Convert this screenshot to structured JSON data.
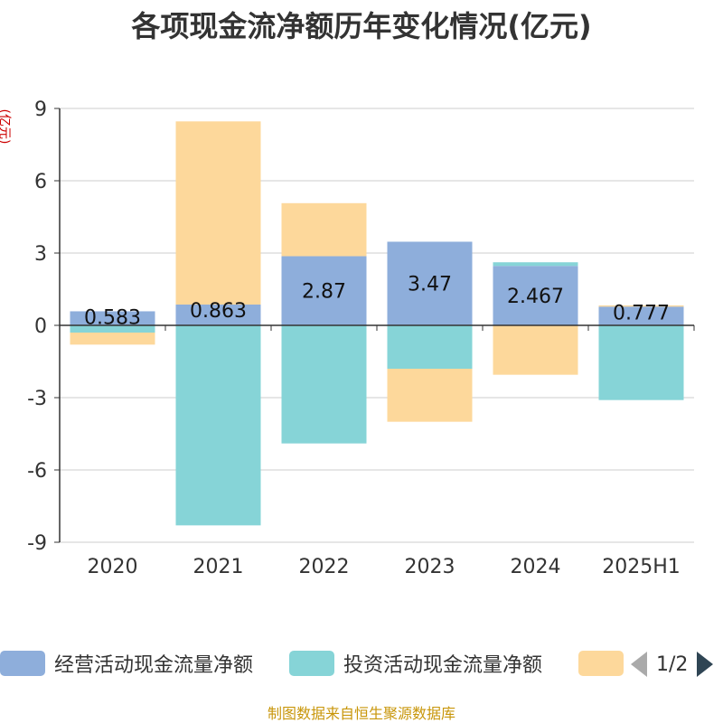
{
  "title": "各项现金流净额历年变化情况(亿元)",
  "unit": "(亿元)",
  "source": "制图数据来自恒生聚源数据库",
  "legend": {
    "items": [
      {
        "name": "经营活动现金流量净额",
        "color": "#8eaedb"
      },
      {
        "name": "投资活动现金流量净额",
        "color": "#86d4d7"
      },
      {
        "name": "",
        "color": "#fdd89b"
      }
    ],
    "page": "1/2"
  },
  "chart_data": {
    "type": "bar",
    "stacked": true,
    "categories": [
      "2020",
      "2021",
      "2022",
      "2023",
      "2024",
      "2025H1"
    ],
    "ylim": [
      -9,
      9
    ],
    "yticks": [
      9,
      6,
      3,
      0,
      -3,
      -6,
      -9
    ],
    "grid": true,
    "series": [
      {
        "name": "经营活动现金流量净额",
        "color": "#8eaedb",
        "values": [
          0.583,
          0.863,
          2.87,
          3.47,
          2.467,
          0.777
        ],
        "labels": [
          "0.583",
          "0.863",
          "2.87",
          "3.47",
          "2.467",
          "0.777"
        ]
      },
      {
        "name": "投资活动现金流量净额",
        "color": "#86d4d7",
        "values": [
          -0.3,
          -8.3,
          -4.9,
          -1.8,
          0.15,
          -3.1
        ]
      },
      {
        "name": "",
        "color": "#fdd89b",
        "values": [
          -0.5,
          7.6,
          2.2,
          -2.2,
          -2.05,
          0.05
        ]
      }
    ]
  }
}
